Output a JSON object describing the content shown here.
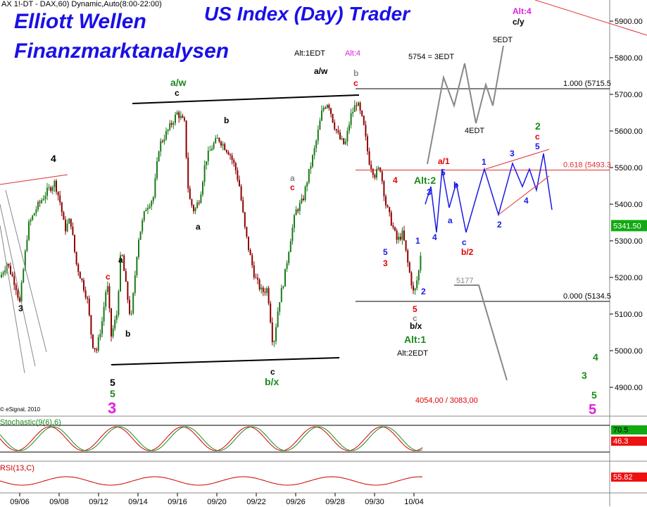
{
  "header": {
    "symbol_info": "AX 1!-DT - DAX,60) Dynamic,Auto(8:00-22:00)",
    "title_line1": "Elliott Wellen",
    "title_line2": "Finanzmarktanalysen",
    "title_right": "US Index (Day) Trader"
  },
  "colors": {
    "up_candle": "#1a7a1a",
    "down_candle": "#8b0000",
    "blue_text": "#1a10e6",
    "red_text": "#e00000",
    "green_text": "#1a8a1a",
    "gray_text": "#888888",
    "magenta_text": "#e020e0",
    "projection_blue": "#1a1ae6",
    "projection_gray": "#888888",
    "fib_line": "#000000",
    "stoch_k": "#cc0000",
    "stoch_d": "#1a8a1a",
    "rsi_line": "#cc0000",
    "price_badge_bg": "#12aa12"
  },
  "chart_data": {
    "type": "candlestick",
    "instrument": "DAX",
    "interval": "60",
    "x_tick_labels": [
      "09/06",
      "09/08",
      "09/12",
      "09/14",
      "09/16",
      "09/20",
      "09/22",
      "09/26",
      "09/28",
      "09/30",
      "10/04"
    ],
    "y_tick_labels": [
      "4900.00",
      "5000.00",
      "5100.00",
      "5200.00",
      "5300.00",
      "5400.00",
      "5500.00",
      "5600.00",
      "5700.00",
      "5800.00",
      "5900.00"
    ],
    "ylim": [
      4850,
      5950
    ],
    "price_path_anchors": [
      {
        "x": 0,
        "y": 5200
      },
      {
        "x": 10,
        "y": 5240
      },
      {
        "x": 22,
        "y": 5180
      },
      {
        "x": 28,
        "y": 5130
      },
      {
        "x": 40,
        "y": 5340
      },
      {
        "x": 52,
        "y": 5390
      },
      {
        "x": 65,
        "y": 5430
      },
      {
        "x": 78,
        "y": 5460
      },
      {
        "x": 86,
        "y": 5400
      },
      {
        "x": 92,
        "y": 5330
      },
      {
        "x": 100,
        "y": 5360
      },
      {
        "x": 108,
        "y": 5240
      },
      {
        "x": 118,
        "y": 5180
      },
      {
        "x": 124,
        "y": 5140
      },
      {
        "x": 131,
        "y": 5020
      },
      {
        "x": 137,
        "y": 5000
      },
      {
        "x": 145,
        "y": 5080
      },
      {
        "x": 152,
        "y": 5190
      },
      {
        "x": 158,
        "y": 5040
      },
      {
        "x": 166,
        "y": 5100
      },
      {
        "x": 172,
        "y": 5280
      },
      {
        "x": 180,
        "y": 5160
      },
      {
        "x": 186,
        "y": 5080
      },
      {
        "x": 196,
        "y": 5300
      },
      {
        "x": 207,
        "y": 5390
      },
      {
        "x": 218,
        "y": 5420
      },
      {
        "x": 226,
        "y": 5560
      },
      {
        "x": 238,
        "y": 5600
      },
      {
        "x": 252,
        "y": 5650
      },
      {
        "x": 262,
        "y": 5620
      },
      {
        "x": 268,
        "y": 5420
      },
      {
        "x": 276,
        "y": 5380
      },
      {
        "x": 284,
        "y": 5420
      },
      {
        "x": 292,
        "y": 5520
      },
      {
        "x": 302,
        "y": 5560
      },
      {
        "x": 310,
        "y": 5580
      },
      {
        "x": 318,
        "y": 5560
      },
      {
        "x": 326,
        "y": 5540
      },
      {
        "x": 334,
        "y": 5500
      },
      {
        "x": 340,
        "y": 5450
      },
      {
        "x": 348,
        "y": 5330
      },
      {
        "x": 354,
        "y": 5270
      },
      {
        "x": 362,
        "y": 5200
      },
      {
        "x": 372,
        "y": 5160
      },
      {
        "x": 380,
        "y": 5170
      },
      {
        "x": 388,
        "y": 5010
      },
      {
        "x": 396,
        "y": 5130
      },
      {
        "x": 404,
        "y": 5200
      },
      {
        "x": 412,
        "y": 5300
      },
      {
        "x": 420,
        "y": 5380
      },
      {
        "x": 430,
        "y": 5410
      },
      {
        "x": 438,
        "y": 5480
      },
      {
        "x": 448,
        "y": 5560
      },
      {
        "x": 458,
        "y": 5660
      },
      {
        "x": 466,
        "y": 5680
      },
      {
        "x": 474,
        "y": 5620
      },
      {
        "x": 482,
        "y": 5580
      },
      {
        "x": 490,
        "y": 5560
      },
      {
        "x": 498,
        "y": 5640
      },
      {
        "x": 507,
        "y": 5680
      },
      {
        "x": 516,
        "y": 5620
      },
      {
        "x": 524,
        "y": 5520
      },
      {
        "x": 532,
        "y": 5480
      },
      {
        "x": 540,
        "y": 5500
      },
      {
        "x": 548,
        "y": 5400
      },
      {
        "x": 556,
        "y": 5350
      },
      {
        "x": 564,
        "y": 5300
      },
      {
        "x": 572,
        "y": 5320
      },
      {
        "x": 580,
        "y": 5230
      },
      {
        "x": 588,
        "y": 5150
      },
      {
        "x": 595,
        "y": 5220
      },
      {
        "x": 601,
        "y": 5330
      }
    ],
    "last_price": "5341.50",
    "fibonacci": [
      {
        "label": "1.000 (5715.5)",
        "value": 5715.5
      },
      {
        "label": "0.618 (5493.3)",
        "value": 5493.3
      },
      {
        "label": "0.000 (5134.5)",
        "value": 5134.5
      }
    ],
    "indicators": [
      {
        "name": "Stochastic(9(6),6)",
        "values": [
          "70.5",
          "46.3"
        ]
      },
      {
        "name": "RSI(13,C)",
        "values": [
          "55.82"
        ]
      }
    ],
    "copyright": "© eSignal, 2010",
    "annotations": {
      "fib_1": "1.000 (5715.5",
      "fib_0618": "0.618 (5493.3",
      "fib_0": "0.000 (5134.5",
      "target_5754": "5754 = 3EDT",
      "target_5edt": "5EDT",
      "target_4edt": "4EDT",
      "level_5177": "5177",
      "levels_bottom": "4054,00 / 3083,00",
      "alt4_top_right": "Alt:4",
      "cy": "c/y",
      "alt1edt": "Alt:1EDT",
      "alt4_mid": "Alt:4",
      "aw_left": "a/w",
      "aw_mid": "a/w",
      "bx_left": "b/x",
      "bx_mid": "b/x",
      "alt1": "Alt:1",
      "alt2": "Alt:2",
      "alt2edt": "Alt:2EDT",
      "a1": "a/1",
      "b2": "b/2",
      "big3": "3",
      "big5": "5"
    }
  }
}
